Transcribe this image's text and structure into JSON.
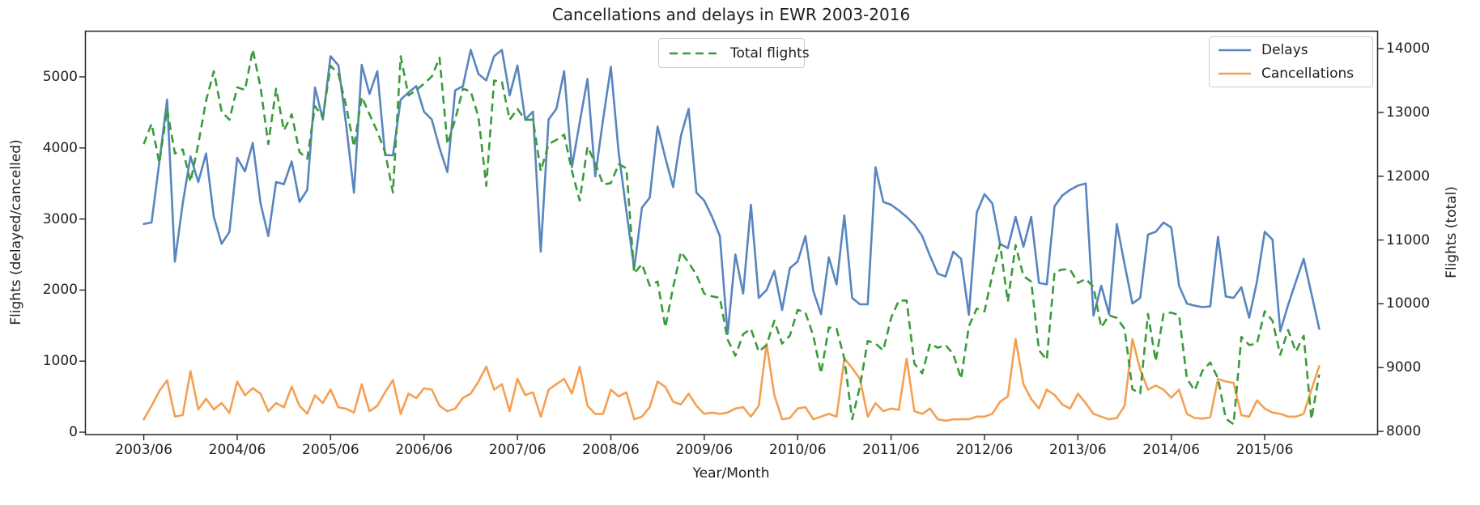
{
  "title": "Cancellations and delays in EWR 2003-2016",
  "axes": {
    "x_label": "Year/Month",
    "y_left_label": "Flights (delayed/cancelled)",
    "y_right_label": "Flights (total)",
    "x_tick_labels": [
      "2003/06",
      "2004/06",
      "2005/06",
      "2006/06",
      "2007/06",
      "2008/06",
      "2009/06",
      "2010/06",
      "2011/06",
      "2012/06",
      "2013/06",
      "2014/06",
      "2015/06"
    ],
    "y_left_tick_values": [
      0,
      1000,
      2000,
      3000,
      4000,
      5000
    ],
    "y_right_tick_values": [
      8000,
      9000,
      10000,
      11000,
      12000,
      13000,
      14000
    ]
  },
  "legend": {
    "total_flights": "Total flights",
    "delays": "Delays",
    "cancellations": "Cancellations"
  },
  "colors": {
    "delays": "#5885bf",
    "cancellations": "#f4a050",
    "total_flights": "#3a9b3a",
    "spine": "#262626",
    "text": "#1e1e1e"
  },
  "chart_data": {
    "type": "line",
    "title": "Cancellations and delays in EWR 2003-2016",
    "xlabel": "Year/Month",
    "ylabel_left": "Flights (delayed/cancelled)",
    "ylabel_right": "Flights (total)",
    "x_start_month": "2003/06",
    "x_end_month": "2016/01",
    "x_interval": "monthly",
    "x_tick_months": [
      0,
      12,
      24,
      36,
      48,
      60,
      72,
      84,
      96,
      108,
      120,
      132,
      144
    ],
    "xlim": [
      -7.55,
      158.55
    ],
    "ylim_left": [
      -34,
      5649
    ],
    "ylim_right": [
      7949,
      14281
    ],
    "grid": false,
    "series": [
      {
        "name": "Delays",
        "axis": "left",
        "style": "solid",
        "values": [
          2930,
          2950,
          3800,
          4680,
          2400,
          3220,
          3880,
          3520,
          3920,
          3030,
          2650,
          2820,
          3860,
          3670,
          4070,
          3220,
          2760,
          3520,
          3490,
          3810,
          3240,
          3410,
          4850,
          4400,
          5290,
          5160,
          4320,
          3370,
          5170,
          4760,
          5080,
          3900,
          3895,
          4680,
          4780,
          4870,
          4510,
          4400,
          4000,
          3660,
          4810,
          4870,
          5380,
          5040,
          4950,
          5290,
          5380,
          4740,
          5160,
          4400,
          4510,
          2540,
          4400,
          4550,
          5080,
          3730,
          4360,
          4970,
          3600,
          4400,
          5140,
          3940,
          3110,
          2300,
          3160,
          3300,
          4300,
          3860,
          3450,
          4170,
          4550,
          3370,
          3260,
          3030,
          2760,
          1380,
          2500,
          1950,
          3200,
          1890,
          2000,
          2270,
          1720,
          2310,
          2400,
          2760,
          1990,
          1660,
          2460,
          2080,
          3050,
          1890,
          1800,
          1800,
          3730,
          3240,
          3200,
          3120,
          3030,
          2920,
          2760,
          2480,
          2230,
          2190,
          2540,
          2440,
          1650,
          3090,
          3350,
          3220,
          2650,
          2590,
          3030,
          2610,
          3030,
          2100,
          2080,
          3180,
          3330,
          3410,
          3470,
          3500,
          1640,
          2060,
          1660,
          2930,
          2365,
          1810,
          1890,
          2780,
          2820,
          2950,
          2880,
          2060,
          1810,
          1780,
          1760,
          1770,
          2750,
          1910,
          1890,
          2040,
          1610,
          2120,
          2820,
          2710,
          1420,
          1790,
          2120,
          2440,
          1950,
          1455
        ]
      },
      {
        "name": "Cancellations",
        "axis": "left",
        "style": "solid",
        "values": [
          180,
          370,
          580,
          730,
          220,
          240,
          860,
          320,
          470,
          320,
          410,
          270,
          710,
          520,
          620,
          540,
          295,
          410,
          350,
          640,
          370,
          260,
          520,
          410,
          600,
          350,
          330,
          276,
          675,
          295,
          370,
          560,
          732,
          257,
          542,
          480,
          618,
          599,
          371,
          295,
          333,
          482,
          542,
          713,
          921,
          598,
          675,
          295,
          751,
          523,
          561,
          219,
          598,
          675,
          751,
          542,
          921,
          371,
          257,
          257,
          598,
          503,
          561,
          181,
          219,
          352,
          713,
          637,
          428,
          390,
          542,
          371,
          257,
          276,
          257,
          276,
          333,
          352,
          219,
          371,
          1245,
          523,
          181,
          200,
          333,
          352,
          181,
          219,
          257,
          219,
          1036,
          903,
          751,
          219,
          409,
          295,
          333,
          314,
          1036,
          295,
          257,
          333,
          181,
          162,
          181,
          181,
          181,
          219,
          219,
          257,
          428,
          500,
          1310,
          675,
          466,
          333,
          598,
          523,
          390,
          333,
          542,
          409,
          257,
          219,
          181,
          200,
          371,
          1310,
          883,
          598,
          656,
          598,
          485,
          598,
          257,
          200,
          190,
          210,
          750,
          713,
          694,
          238,
          219,
          447,
          333,
          276,
          257,
          219,
          219,
          257,
          598,
          930
        ]
      },
      {
        "name": "Total flights",
        "axis": "right",
        "style": "dashed",
        "values": [
          12505,
          12823,
          12209,
          13055,
          12357,
          12421,
          11913,
          12505,
          13182,
          13648,
          13013,
          12886,
          13394,
          13352,
          13986,
          13394,
          12505,
          13373,
          12717,
          12971,
          12379,
          12273,
          13098,
          12928,
          13732,
          13605,
          13100,
          12463,
          13246,
          12971,
          12700,
          12379,
          11744,
          13880,
          13267,
          13351,
          13450,
          13563,
          13859,
          12505,
          12886,
          13373,
          13330,
          12928,
          11850,
          13500,
          13478,
          12886,
          13055,
          12886,
          12886,
          12082,
          12505,
          12569,
          12653,
          12082,
          11617,
          12463,
          12209,
          11871,
          11892,
          12188,
          12125,
          10475,
          10623,
          10285,
          10348,
          9629,
          10260,
          10813,
          10644,
          10454,
          10158,
          10116,
          10095,
          9439,
          9185,
          9524,
          9608,
          9248,
          9354,
          9735,
          9375,
          9500,
          9904,
          9862,
          9500,
          8910,
          9629,
          9608,
          9142,
          8190,
          8700,
          9418,
          9375,
          9270,
          9777,
          10052,
          10052,
          9060,
          8910,
          9375,
          9311,
          9354,
          9206,
          8825,
          9650,
          9925,
          9880,
          10450,
          10940,
          10030,
          10920,
          10433,
          10348,
          9270,
          9121,
          10496,
          10538,
          10538,
          10327,
          10390,
          10264,
          9629,
          9819,
          9777,
          9608,
          8660,
          8593,
          9841,
          9100,
          9841,
          9862,
          9819,
          8825,
          8640,
          8950,
          9080,
          8830,
          8200,
          8110,
          9481,
          9354,
          9375,
          9883,
          9735,
          9200,
          9590,
          9250,
          9500,
          8190,
          8890
        ]
      }
    ]
  }
}
